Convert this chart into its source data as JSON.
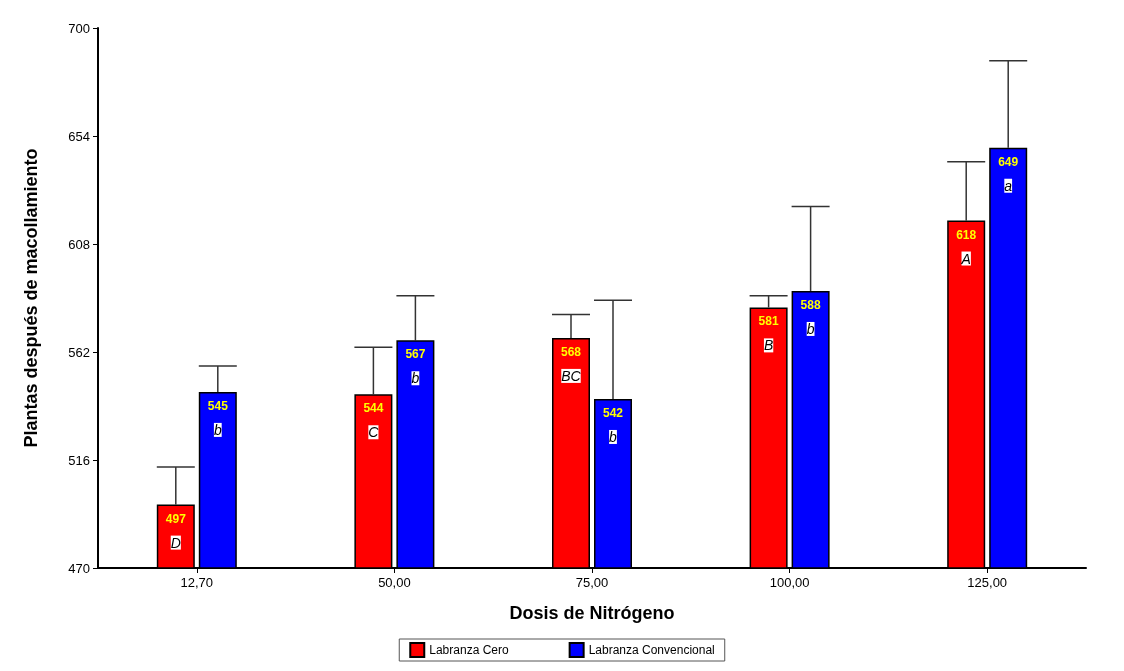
{
  "chart_data": {
    "type": "bar",
    "xlabel": "Dosis de Nitrógeno",
    "ylabel": "Plantas después de macollamiento",
    "categories": [
      "12,70",
      "50,00",
      "75,00",
      "100,00",
      "125,00"
    ],
    "series": [
      {
        "name": "Labranza Cero",
        "color": "#ff0000",
        "values": [
          497,
          544,
          568,
          581,
          618
        ],
        "errors": [
          [
            497,
            513
          ],
          [
            544,
            564
          ],
          [
            568,
            578
          ],
          [
            581,
            586
          ],
          [
            618,
            643
          ]
        ]
      },
      {
        "name": "Labranza Convencional",
        "color": "#0000ff",
        "values": [
          545,
          567,
          542,
          588,
          649
        ],
        "errors": [
          [
            545,
            556
          ],
          [
            567,
            586
          ],
          [
            542,
            584
          ],
          [
            588,
            624
          ],
          [
            649,
            686
          ]
        ]
      }
    ],
    "ylim": [
      470,
      700
    ],
    "yticks": [
      470,
      516,
      562,
      608,
      654,
      700
    ],
    "grid": false,
    "legend": "bottom",
    "data_labels": true,
    "annotations": [
      {
        "text": "D",
        "x": "12,70",
        "y": 497
      },
      {
        "text": "b",
        "x": "12,70",
        "y": 545
      },
      {
        "text": "C",
        "x": "50,00",
        "y": 544
      },
      {
        "text": "b",
        "x": "50,00",
        "y": 567
      },
      {
        "text": "BC",
        "x": "75,00",
        "y": 568
      },
      {
        "text": "b",
        "x": "75,00",
        "y": 542
      },
      {
        "text": "B",
        "x": "100,00",
        "y": 581
      },
      {
        "text": "b",
        "x": "100,00",
        "y": 588
      },
      {
        "text": "A",
        "x": "125,00",
        "y": 618
      },
      {
        "text": "a",
        "x": "125,00",
        "y": 649
      }
    ]
  }
}
